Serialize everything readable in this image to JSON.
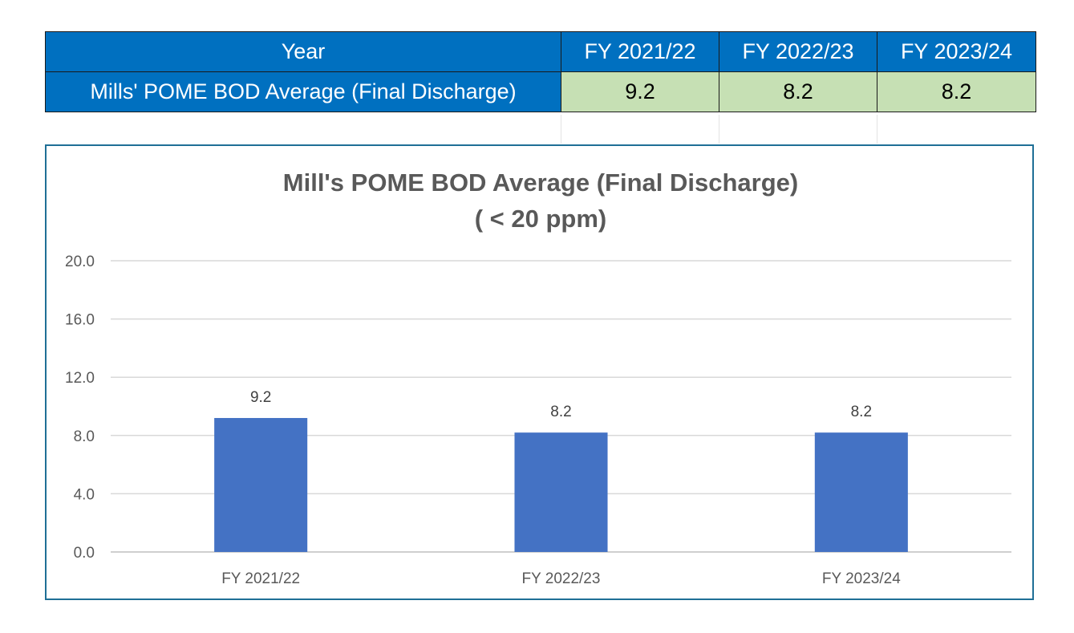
{
  "table": {
    "header_label": "Year",
    "years": [
      "FY 2021/22",
      "FY 2022/23",
      "FY 2023/24"
    ],
    "row_label": "Mills' POME BOD Average (Final Discharge)",
    "values": [
      "9.2",
      "8.2",
      "8.2"
    ]
  },
  "colors": {
    "header_bg": "#0070c0",
    "value_bg": "#c6e0b4",
    "bar": "#4472c4",
    "frame": "#1f6f96"
  },
  "chart_data": {
    "type": "bar",
    "title": "Mill's POME BOD Average (Final Discharge)",
    "subtitle": "( < 20 ppm)",
    "categories": [
      "FY 2021/22",
      "FY 2022/23",
      "FY 2023/24"
    ],
    "values": [
      9.2,
      8.2,
      8.2
    ],
    "data_labels": [
      "9.2",
      "8.2",
      "8.2"
    ],
    "xlabel": "",
    "ylabel": "",
    "ylim": [
      0,
      20
    ],
    "yticks": [
      0,
      4,
      8,
      12,
      16,
      20
    ],
    "ytick_labels": [
      "0.0",
      "4.0",
      "8.0",
      "12.0",
      "16.0",
      "20.0"
    ],
    "grid": true,
    "legend": "none"
  }
}
